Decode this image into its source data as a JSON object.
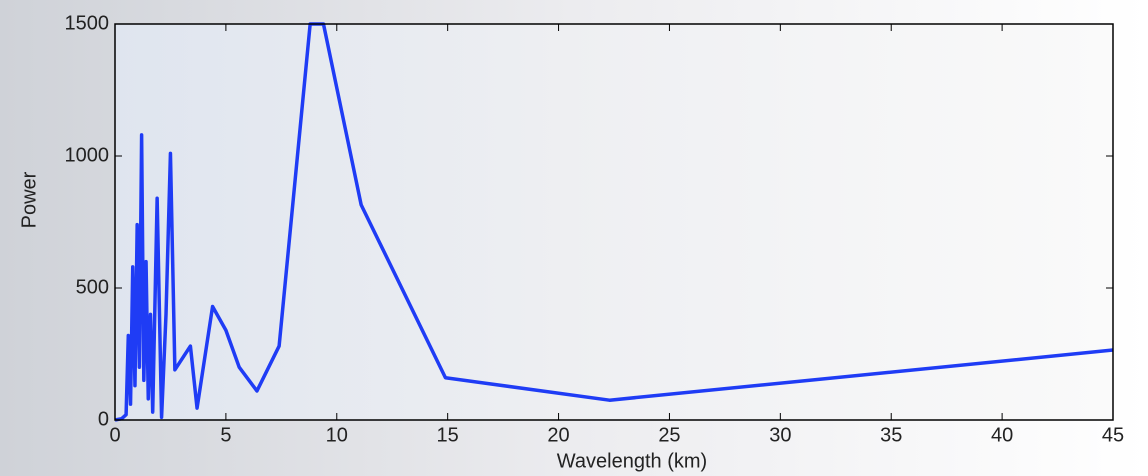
{
  "chart_data": {
    "type": "line",
    "xlabel": "Wavelength (km)",
    "ylabel": "Power",
    "x": [
      0,
      0.3,
      0.5,
      0.6,
      0.7,
      0.8,
      0.9,
      1.0,
      1.1,
      1.2,
      1.3,
      1.4,
      1.5,
      1.6,
      1.7,
      1.9,
      2.1,
      2.3,
      2.5,
      2.7,
      3.4,
      3.7,
      4.4,
      5.0,
      5.6,
      6.4,
      7.4,
      8.8,
      9.4,
      11.1,
      14.9,
      22.3,
      45
    ],
    "series": [
      {
        "name": "Power",
        "color": "#1f3cf5",
        "values": [
          0,
          5,
          20,
          320,
          60,
          580,
          130,
          740,
          200,
          1080,
          150,
          600,
          80,
          400,
          30,
          840,
          10,
          400,
          1010,
          190,
          280,
          45,
          430,
          340,
          200,
          110,
          280,
          1500,
          1500,
          815,
          160,
          75,
          265
        ]
      }
    ],
    "xlim": [
      0,
      45
    ],
    "xticks": [
      0,
      5,
      10,
      15,
      20,
      25,
      30,
      35,
      40,
      45
    ],
    "ylim": [
      0,
      1500
    ],
    "yticks": [
      0,
      500,
      1000,
      1500
    ]
  }
}
